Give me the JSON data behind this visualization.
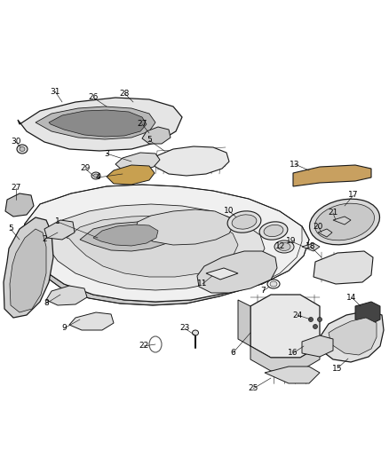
{
  "bg_color": "#ffffff",
  "line_color": "#1a1a1a",
  "figsize": [
    4.38,
    5.33
  ],
  "dpi": 100,
  "gray_light": "#e8e8e8",
  "gray_mid": "#d0d0d0",
  "gray_dark": "#b0b0b0",
  "brown": "#8B6914",
  "dark_fill": "#555555",
  "white": "#ffffff"
}
